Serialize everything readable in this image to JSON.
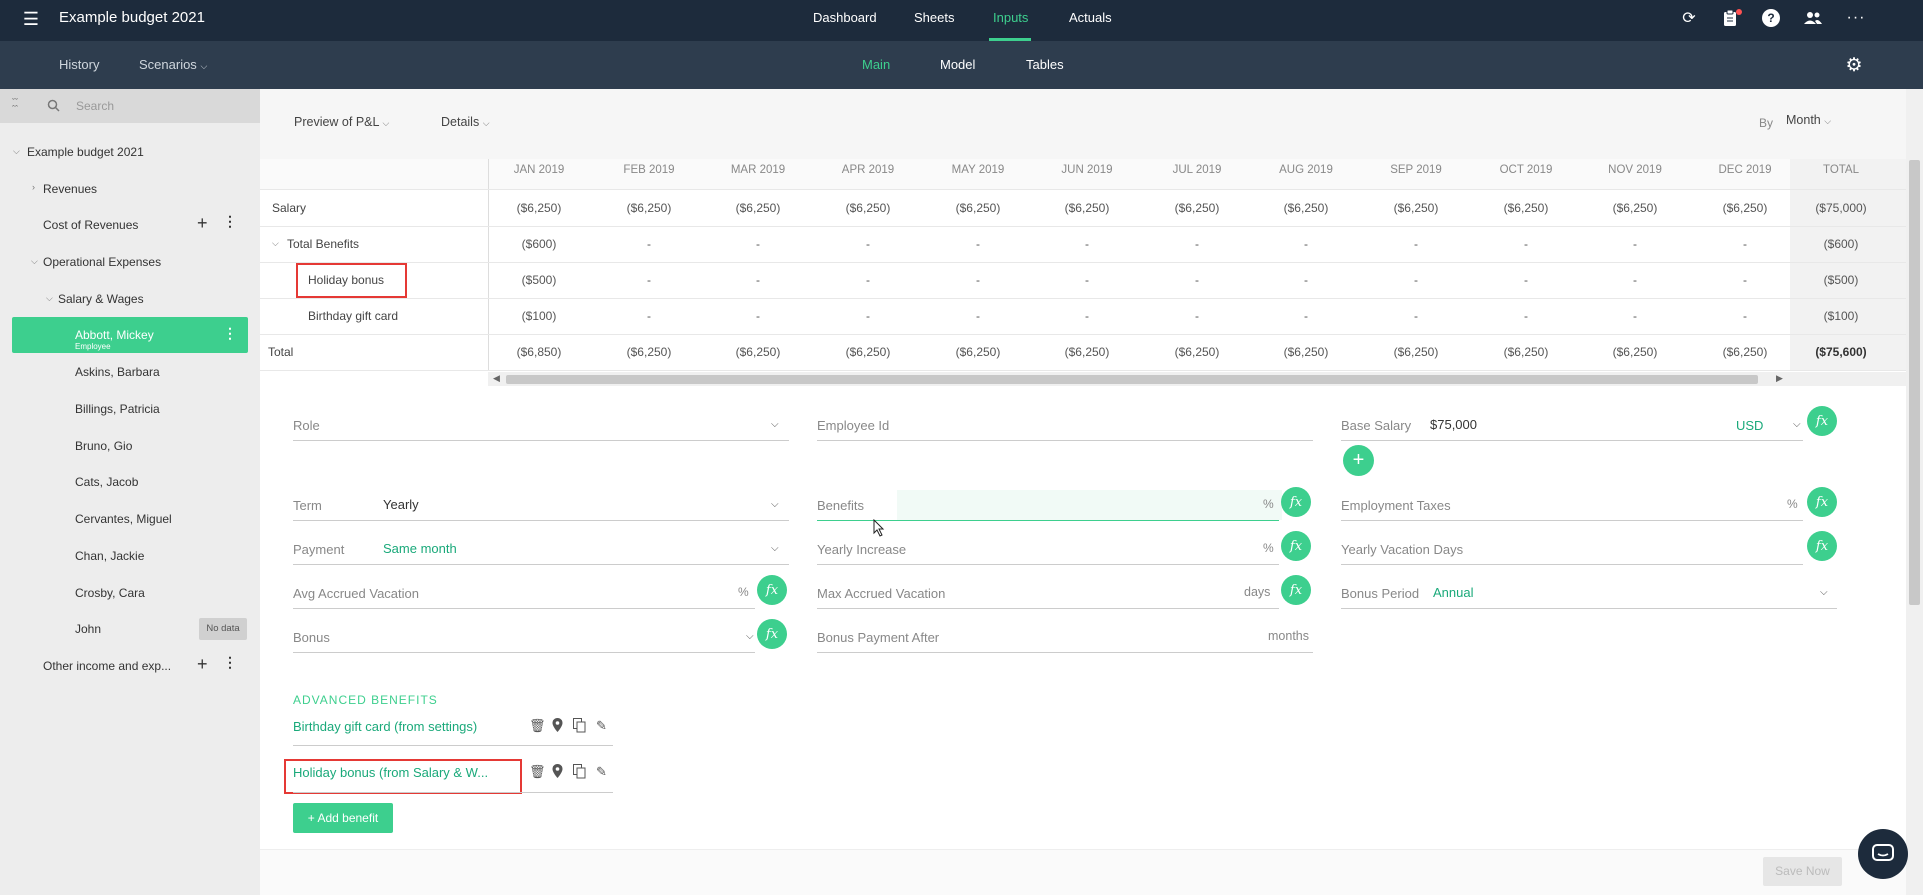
{
  "app": {
    "title": "Example budget 2021"
  },
  "top_nav": {
    "tabs": [
      "Dashboard",
      "Sheets",
      "Inputs",
      "Actuals"
    ],
    "active": "Inputs"
  },
  "sub_nav": {
    "history": "History",
    "scenarios": "Scenarios",
    "tabs": [
      "Main",
      "Model",
      "Tables"
    ],
    "active": "Main"
  },
  "sidebar": {
    "search_placeholder": "Search",
    "root": "Example budget 2021",
    "revenues": "Revenues",
    "cost_of_revenues": "Cost of Revenues",
    "operational_expenses": "Operational Expenses",
    "salary_wages": "Salary & Wages",
    "selected": {
      "name": "Abbott, Mickey",
      "sub": "Employee"
    },
    "employees": [
      "Askins, Barbara",
      "Billings, Patricia",
      "Bruno, Gio",
      "Cats, Jacob",
      "Cervantes, Miguel",
      "Chan, Jackie",
      "Crosby, Cara"
    ],
    "john": "John",
    "no_data": "No data",
    "other": "Other income and exp..."
  },
  "toolbar": {
    "preview": "Preview of P&L",
    "details": "Details",
    "by_label": "By",
    "by_value": "Month"
  },
  "table": {
    "columns": [
      "JAN 2019",
      "FEB 2019",
      "MAR 2019",
      "APR 2019",
      "MAY 2019",
      "JUN 2019",
      "JUL 2019",
      "AUG 2019",
      "SEP 2019",
      "OCT 2019",
      "NOV 2019",
      "DEC 2019"
    ],
    "total_label": "TOTAL",
    "rows": [
      {
        "label": "Salary",
        "values": [
          "($6,250)",
          "($6,250)",
          "($6,250)",
          "($6,250)",
          "($6,250)",
          "($6,250)",
          "($6,250)",
          "($6,250)",
          "($6,250)",
          "($6,250)",
          "($6,250)",
          "($6,250)"
        ],
        "total": "($75,000)"
      },
      {
        "label": "Total Benefits",
        "values": [
          "($600)",
          "-",
          "-",
          "-",
          "-",
          "-",
          "-",
          "-",
          "-",
          "-",
          "-",
          "-"
        ],
        "total": "($600)"
      },
      {
        "label": "Holiday bonus",
        "values": [
          "($500)",
          "-",
          "-",
          "-",
          "-",
          "-",
          "-",
          "-",
          "-",
          "-",
          "-",
          "-"
        ],
        "total": "($500)"
      },
      {
        "label": "Birthday gift card",
        "values": [
          "($100)",
          "-",
          "-",
          "-",
          "-",
          "-",
          "-",
          "-",
          "-",
          "-",
          "-",
          "-"
        ],
        "total": "($100)"
      },
      {
        "label": "Total",
        "values": [
          "($6,850)",
          "($6,250)",
          "($6,250)",
          "($6,250)",
          "($6,250)",
          "($6,250)",
          "($6,250)",
          "($6,250)",
          "($6,250)",
          "($6,250)",
          "($6,250)",
          "($6,250)"
        ],
        "total": "($75,600)"
      }
    ]
  },
  "form": {
    "role": "Role",
    "employee_id": "Employee Id",
    "base_salary": "Base Salary",
    "base_salary_value": "$75,000",
    "currency": "USD",
    "term": "Term",
    "term_value": "Yearly",
    "benefits": "Benefits",
    "employment_taxes": "Employment Taxes",
    "payment": "Payment",
    "payment_value": "Same month",
    "yearly_increase": "Yearly Increase",
    "yearly_vacation_days": "Yearly Vacation Days",
    "avg_accrued_vacation": "Avg Accrued Vacation",
    "max_accrued_vacation": "Max Accrued Vacation",
    "days": "days",
    "bonus_period": "Bonus Period",
    "bonus_period_value": "Annual",
    "bonus": "Bonus",
    "bonus_payment_after": "Bonus Payment After",
    "months": "months",
    "percent": "%",
    "fx": "fx"
  },
  "advanced": {
    "heading": "ADVANCED BENEFITS",
    "items": [
      "Birthday gift card (from settings)",
      "Holiday bonus (from Salary & W..."
    ],
    "add_button": "+ Add benefit"
  },
  "footer": {
    "save": "Save Now"
  },
  "colors": {
    "topbar": "#1d2b3c",
    "subbar": "#2e3d4e",
    "accent": "#3dcf8e",
    "accent_text": "#1aa97a",
    "highlight": "#e53935"
  }
}
